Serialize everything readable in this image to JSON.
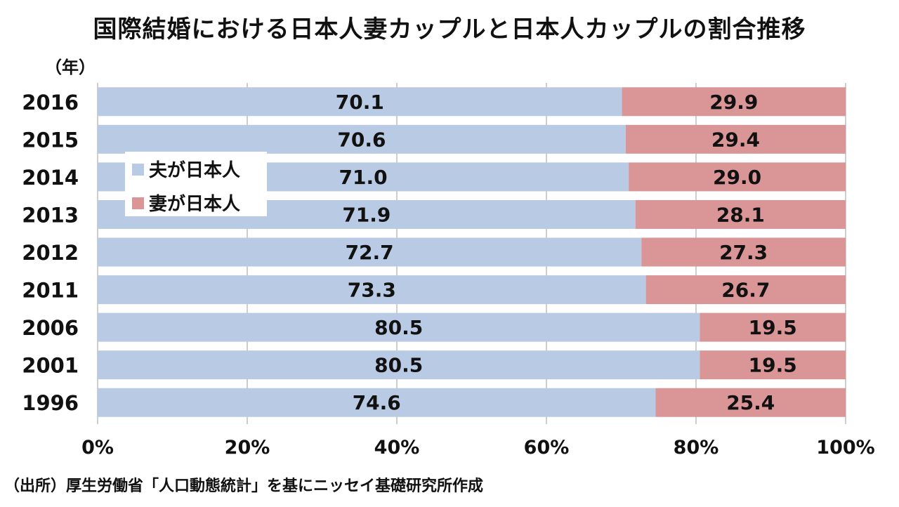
{
  "title": "国際結婚における日本人妻カップルと日本人カップルの割合推移",
  "source": "（出所）厚生労働省「人口動態統計」を基にニッセイ基礎研究所作成",
  "chart_data": {
    "type": "bar",
    "orientation": "horizontal",
    "stacked": "percent",
    "title": "国際結婚における日本人妻カップルと日本人カップルの割合推移",
    "ylabel": "（年）",
    "xlabel": "",
    "categories": [
      "2016",
      "2015",
      "2014",
      "2013",
      "2012",
      "2011",
      "2006",
      "2001",
      "1996"
    ],
    "series": [
      {
        "name": "夫が日本人",
        "color": "#b9cbe4",
        "values": [
          70.1,
          70.6,
          71.0,
          71.9,
          72.7,
          73.3,
          80.5,
          80.5,
          74.6
        ],
        "labels": [
          "70.1",
          "70.6",
          "71.0",
          "71.9",
          "72.7",
          "73.3",
          "80.5",
          "80.5",
          "74.6"
        ]
      },
      {
        "name": "妻が日本人",
        "color": "#da9597",
        "values": [
          29.9,
          29.4,
          29.0,
          28.1,
          27.3,
          26.7,
          19.5,
          19.5,
          25.4
        ],
        "labels": [
          "29.9",
          "29.4",
          "29.0",
          "28.1",
          "27.3",
          "26.7",
          "19.5",
          "19.5",
          "25.4"
        ]
      }
    ],
    "xlim": [
      0,
      100
    ],
    "xticks": [
      "0%",
      "20%",
      "40%",
      "60%",
      "80%",
      "100%"
    ],
    "grid": true,
    "legend_position": "top-left inside"
  }
}
